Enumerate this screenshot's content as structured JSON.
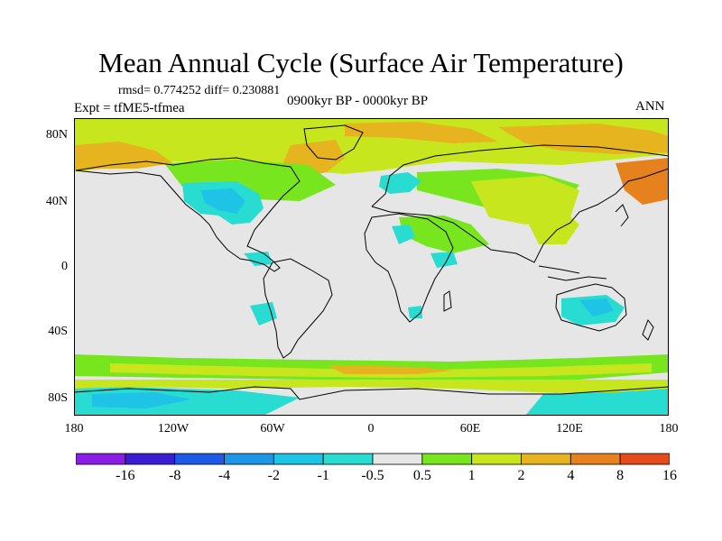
{
  "title": "Mean Annual Cycle (Surface Air Temperature)",
  "stats": "rmsd= 0.774252 diff= 0.230881",
  "experiment": "Expt = tfME5-tfmea",
  "period": "0900kyr BP - 0000kyr BP",
  "season": "ANN",
  "lat_labels": [
    "80N",
    "40N",
    "0",
    "40S",
    "80S"
  ],
  "lon_labels": [
    "180",
    "120W",
    "60W",
    "0",
    "60E",
    "120E",
    "180"
  ],
  "colorbar": {
    "labels": [
      "-16",
      "-8",
      "-4",
      "-2",
      "-1",
      "-0.5",
      "0.5",
      "1",
      "2",
      "4",
      "8",
      "16"
    ],
    "colors": [
      "#8a1ee6",
      "#3c1ed2",
      "#1e5ae6",
      "#1e96e6",
      "#1ec3e6",
      "#28dcd2",
      "#e6e6e6",
      "#78e61e",
      "#c8e61e",
      "#e6b41e",
      "#e6821e",
      "#e64b1e"
    ]
  },
  "colors": {
    "neutral": "#e6e6e6",
    "coast": "#000000"
  }
}
